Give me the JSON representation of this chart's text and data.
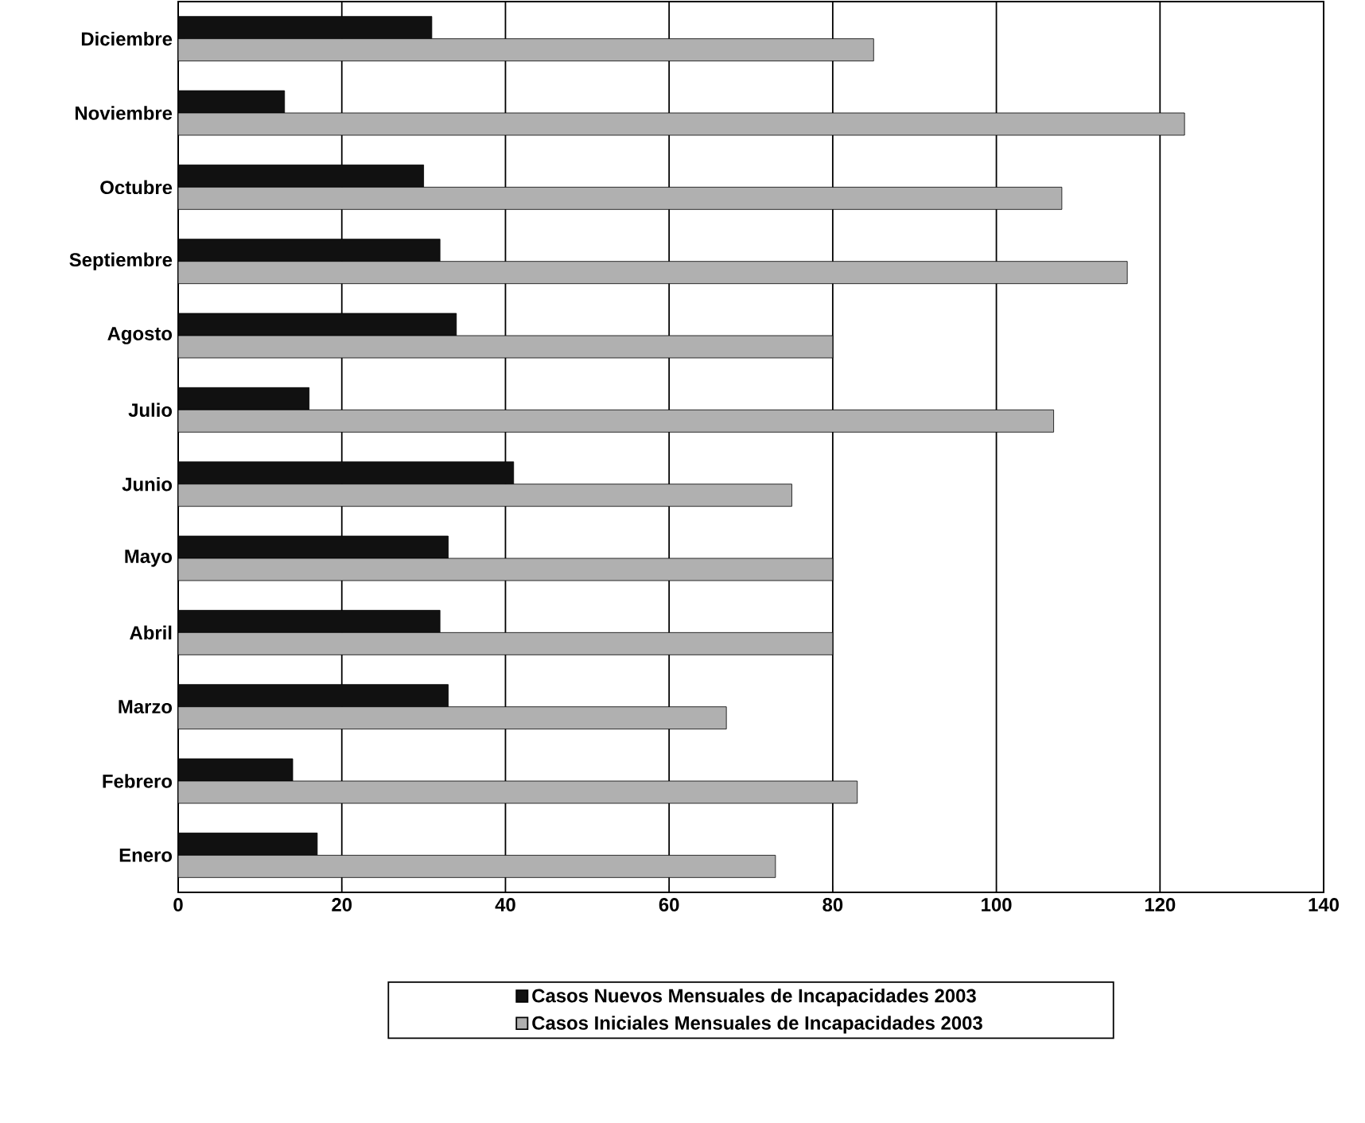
{
  "chart_data": {
    "type": "bar",
    "orientation": "horizontal",
    "categories": [
      "Diciembre",
      "Noviembre",
      "Octubre",
      "Septiembre",
      "Agosto",
      "Julio",
      "Junio",
      "Mayo",
      "Abril",
      "Marzo",
      "Febrero",
      "Enero"
    ],
    "series": [
      {
        "name": "Casos Nuevos Mensuales de Incapacidades 2003",
        "color": "#111111",
        "values": [
          31,
          13,
          30,
          32,
          34,
          16,
          41,
          33,
          32,
          33,
          14,
          17
        ]
      },
      {
        "name": "Casos Iniciales Mensuales de Incapacidades 2003",
        "color": "#b0b0b0",
        "values": [
          85,
          123,
          108,
          116,
          80,
          107,
          75,
          80,
          80,
          67,
          83,
          73
        ]
      }
    ],
    "xlim": [
      0,
      140
    ],
    "xticks": [
      0,
      20,
      40,
      60,
      80,
      100,
      120,
      140
    ],
    "grid": "x",
    "legend": "bottom"
  }
}
